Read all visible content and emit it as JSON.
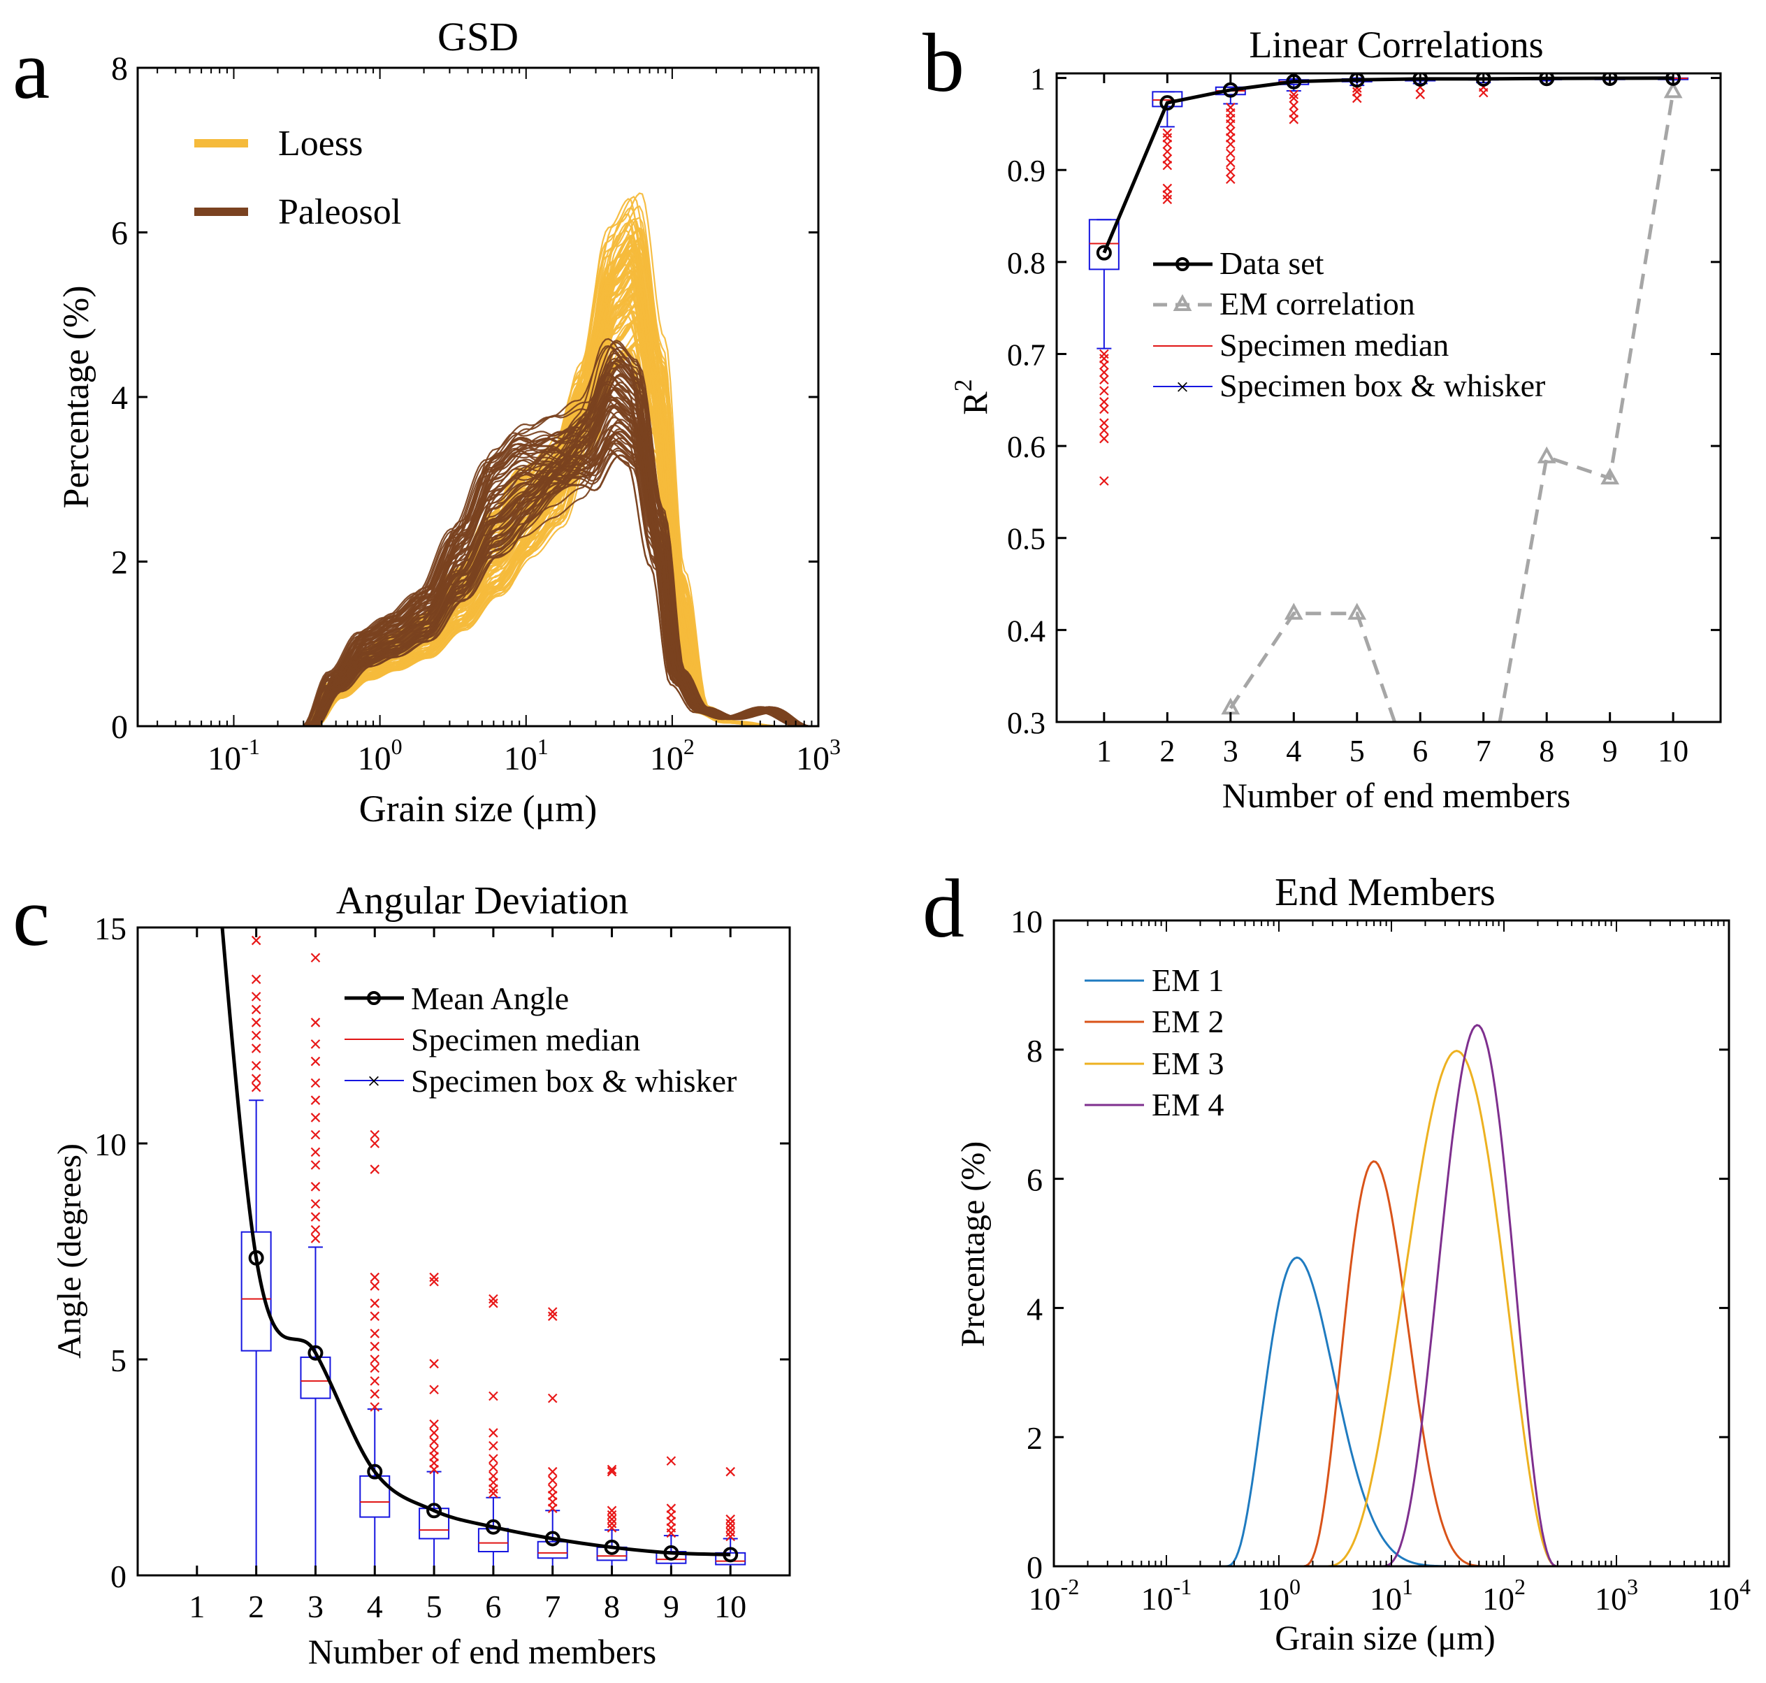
{
  "colors": {
    "loess": "#F5BA3B",
    "paleosol": "#7A4220",
    "box": "#1515E0",
    "median": "#E01515",
    "outlier": "#E81818",
    "dataset": "#000000",
    "em_corr": "#A6A6A6",
    "em1": "#1F7BC0",
    "em2": "#D95319",
    "em3": "#EDB120",
    "em4": "#7E2F8E"
  },
  "chart_data": [
    {
      "id": "a",
      "panel_letter": "a",
      "type": "line",
      "title": "GSD",
      "xlabel": "Grain size  (μm)",
      "ylabel": "Percentage (%)",
      "xscale": "log",
      "xlim": [
        0.022,
        1000
      ],
      "ylim": [
        0,
        8
      ],
      "yticks": [
        "0",
        "2",
        "4",
        "6",
        "8"
      ],
      "xtick_exponents": [
        "-1",
        "0",
        "1",
        "2",
        "3"
      ],
      "xtick_base": "10",
      "legend_position": "top-left",
      "legend": [
        "Loess",
        "Paleosol"
      ],
      "series": [
        {
          "name": "Loess",
          "count": 95,
          "description_values": "family of curves",
          "representative": {
            "x": [
              0.33,
              0.5,
              0.8,
              1.2,
              2,
              3.5,
              6,
              10,
              16,
              25,
              40,
              55,
              80,
              110,
              160,
              250,
              500,
              800
            ],
            "y": [
              0,
              0.45,
              0.75,
              0.9,
              1.1,
              1.55,
              2.1,
              2.6,
              2.95,
              3.9,
              5.2,
              5.5,
              4.0,
              1.6,
              0.2,
              0.05,
              0.0,
              0.0
            ]
          },
          "peak_range": [
            4.3,
            6.6
          ],
          "peak_x": 55
        },
        {
          "name": "Paleosol",
          "count": 70,
          "representative": {
            "x": [
              0.33,
              0.5,
              0.8,
              1.2,
              2,
              3.5,
              6,
              10,
              16,
              25,
              40,
              55,
              80,
              110,
              160,
              250,
              450,
              800
            ],
            "y": [
              0,
              0.55,
              0.95,
              1.1,
              1.35,
              2.0,
              2.7,
              3.0,
              3.2,
              3.4,
              4.0,
              3.8,
              2.3,
              0.6,
              0.2,
              0.1,
              0.2,
              0.0
            ]
          },
          "peak_range": [
            3.2,
            5.2
          ],
          "peak_x": 45
        }
      ]
    },
    {
      "id": "b",
      "panel_letter": "b",
      "type": "line",
      "title": "Linear Correlations",
      "xlabel": "Number of end members",
      "ylabel": "R",
      "ylabel_sup": "2",
      "xlim": [
        0.25,
        10.75
      ],
      "ylim": [
        0.3,
        1.005
      ],
      "xticks": [
        "1",
        "2",
        "3",
        "4",
        "5",
        "6",
        "7",
        "8",
        "9",
        "10"
      ],
      "yticks": [
        "0.3",
        "0.4",
        "0.5",
        "0.6",
        "0.7",
        "0.8",
        "0.9",
        "1"
      ],
      "legend_position": "middle-right",
      "legend": [
        "Data set",
        "EM correlation",
        "Specimen median",
        "Specimen box & whisker"
      ],
      "series": [
        {
          "name": "Data set",
          "x": [
            1,
            2,
            3,
            4,
            5,
            6,
            7,
            8,
            9,
            10
          ],
          "values": [
            0.81,
            0.973,
            0.987,
            0.996,
            0.998,
            0.999,
            0.999,
            0.9995,
            0.9997,
            0.9998
          ]
        },
        {
          "name": "EM correlation",
          "x": [
            1,
            2,
            3,
            4,
            5,
            6,
            7,
            8,
            9,
            10
          ],
          "values": [
            null,
            null,
            0.315,
            0.418,
            0.418,
            0.22,
            0.2,
            0.588,
            0.565,
            0.985
          ]
        }
      ],
      "boxes": [
        {
          "x": 1,
          "q1": 0.792,
          "median": 0.82,
          "q3": 0.846,
          "wlo": 0.706,
          "whi": 0.846,
          "outliers": [
            0.562,
            0.608,
            0.617,
            0.625,
            0.64,
            0.648,
            0.66,
            0.672,
            0.68,
            0.688,
            0.695,
            0.7
          ]
        },
        {
          "x": 2,
          "q1": 0.969,
          "median": 0.976,
          "q3": 0.985,
          "wlo": 0.947,
          "whi": 0.985,
          "outliers": [
            0.868,
            0.873,
            0.88,
            0.905,
            0.912,
            0.92,
            0.928,
            0.935,
            0.94
          ]
        },
        {
          "x": 3,
          "q1": 0.982,
          "median": 0.986,
          "q3": 0.99,
          "wlo": 0.972,
          "whi": 0.99,
          "outliers": [
            0.89,
            0.898,
            0.908,
            0.918,
            0.928,
            0.935,
            0.942,
            0.95,
            0.956,
            0.962,
            0.968
          ]
        },
        {
          "x": 4,
          "q1": 0.993,
          "median": 0.996,
          "q3": 0.998,
          "wlo": 0.986,
          "whi": 0.999,
          "outliers": [
            0.955,
            0.962,
            0.97,
            0.978,
            0.982
          ]
        },
        {
          "x": 5,
          "q1": 0.996,
          "median": 0.998,
          "q3": 0.999,
          "wlo": 0.992,
          "whi": 1.0,
          "outliers": [
            0.978,
            0.985,
            0.989
          ]
        },
        {
          "x": 6,
          "q1": 0.997,
          "median": 0.999,
          "q3": 0.9995,
          "wlo": 0.994,
          "whi": 1.0,
          "outliers": [
            0.982,
            0.99
          ]
        },
        {
          "x": 7,
          "q1": 0.998,
          "median": 0.999,
          "q3": 0.9997,
          "wlo": 0.995,
          "whi": 1.0,
          "outliers": [
            0.984,
            0.99
          ]
        },
        {
          "x": 8,
          "q1": 0.9985,
          "median": 0.9993,
          "q3": 0.9998,
          "wlo": 0.997,
          "whi": 1.0,
          "outliers": []
        },
        {
          "x": 9,
          "q1": 0.9988,
          "median": 0.9995,
          "q3": 0.9999,
          "wlo": 0.998,
          "whi": 1.0,
          "outliers": []
        },
        {
          "x": 10,
          "q1": 0.999,
          "median": 0.9996,
          "q3": 0.9999,
          "wlo": 0.998,
          "whi": 1.0,
          "outliers": []
        }
      ]
    },
    {
      "id": "c",
      "panel_letter": "c",
      "type": "line",
      "title": "Angular Deviation",
      "xlabel": "Number of end members",
      "ylabel": "Angle (degrees)",
      "xlim": [
        0,
        11
      ],
      "ylim": [
        0,
        15
      ],
      "xticks": [
        "1",
        "2",
        "3",
        "4",
        "5",
        "6",
        "7",
        "8",
        "9",
        "10"
      ],
      "yticks": [
        "0",
        "5",
        "10",
        "15"
      ],
      "legend_position": "top-right",
      "legend": [
        "Mean Angle",
        "Specimen median",
        "Specimen box & whisker"
      ],
      "series": [
        {
          "name": "Mean Angle",
          "x": [
            1,
            2,
            3,
            4,
            5,
            6,
            7,
            8,
            9,
            10
          ],
          "values": [
            22.0,
            7.35,
            5.15,
            2.4,
            1.5,
            1.12,
            0.85,
            0.65,
            0.52,
            0.48
          ]
        }
      ],
      "boxes": [
        {
          "x": 2,
          "q1": 5.2,
          "median": 6.4,
          "q3": 7.95,
          "wlo": 0.0,
          "whi": 11.0,
          "outliers": [
            11.3,
            11.5,
            11.8,
            12.2,
            12.5,
            12.8,
            13.1,
            13.4,
            13.8,
            14.7
          ]
        },
        {
          "x": 3,
          "q1": 4.1,
          "median": 4.5,
          "q3": 5.05,
          "wlo": 0.0,
          "whi": 7.6,
          "outliers": [
            7.8,
            8.0,
            8.3,
            8.6,
            9.0,
            9.5,
            9.8,
            10.2,
            10.6,
            11.0,
            11.4,
            11.9,
            12.3,
            12.8,
            14.3
          ]
        },
        {
          "x": 4,
          "q1": 1.35,
          "median": 1.7,
          "q3": 2.3,
          "wlo": 0.0,
          "whi": 3.85,
          "outliers": [
            3.9,
            4.2,
            4.5,
            4.8,
            5.0,
            5.3,
            5.6,
            6.0,
            6.3,
            6.7,
            6.9,
            9.4,
            10.0,
            10.2
          ]
        },
        {
          "x": 5,
          "q1": 0.85,
          "median": 1.05,
          "q3": 1.55,
          "wlo": 0.0,
          "whi": 2.4,
          "outliers": [
            2.45,
            2.6,
            2.75,
            2.9,
            3.1,
            3.3,
            3.5,
            4.3,
            4.9,
            6.8,
            6.9
          ]
        },
        {
          "x": 6,
          "q1": 0.55,
          "median": 0.75,
          "q3": 1.08,
          "wlo": 0.0,
          "whi": 1.8,
          "outliers": [
            1.9,
            2.0,
            2.15,
            2.3,
            2.5,
            2.7,
            3.0,
            3.3,
            4.15,
            6.3,
            6.4
          ]
        },
        {
          "x": 7,
          "q1": 0.4,
          "median": 0.52,
          "q3": 0.78,
          "wlo": 0.0,
          "whi": 1.5,
          "outliers": [
            1.55,
            1.7,
            1.85,
            2.0,
            2.2,
            2.4,
            4.1,
            6.0,
            6.1
          ]
        },
        {
          "x": 8,
          "q1": 0.35,
          "median": 0.45,
          "q3": 0.65,
          "wlo": 0.0,
          "whi": 1.05,
          "outliers": [
            1.1,
            1.2,
            1.3,
            1.4,
            1.5,
            2.4,
            2.45
          ]
        },
        {
          "x": 9,
          "q1": 0.28,
          "median": 0.37,
          "q3": 0.55,
          "wlo": 0.0,
          "whi": 0.92,
          "outliers": [
            0.98,
            1.1,
            1.25,
            1.4,
            1.55,
            2.65
          ]
        },
        {
          "x": 10,
          "q1": 0.25,
          "median": 0.33,
          "q3": 0.52,
          "wlo": 0.0,
          "whi": 0.85,
          "outliers": [
            0.9,
            1.0,
            1.1,
            1.2,
            1.3,
            2.4
          ]
        }
      ]
    },
    {
      "id": "d",
      "panel_letter": "d",
      "type": "line",
      "title": "End Members",
      "xlabel": "Grain size (μm)",
      "ylabel": "Precentage (%)",
      "xscale": "log",
      "xlim": [
        0.01,
        10000
      ],
      "ylim": [
        0,
        10
      ],
      "yticks": [
        "0",
        "2",
        "4",
        "6",
        "8",
        "10"
      ],
      "xtick_exponents": [
        "-2",
        "-1",
        "0",
        "1",
        "2",
        "3",
        "4"
      ],
      "xtick_base": "10",
      "legend_position": "top-left",
      "legend": [
        "EM 1",
        "EM 2",
        "EM 3",
        "EM 4"
      ],
      "series": [
        {
          "name": "EM 1",
          "peak_x": 1.45,
          "peak_y": 4.78,
          "x_min": 0.33,
          "x_max": 100
        },
        {
          "name": "EM 2",
          "peak_x": 7.0,
          "peak_y": 6.27,
          "x_min": 1.6,
          "x_max": 90
        },
        {
          "name": "EM 3",
          "peak_x": 38,
          "peak_y": 7.98,
          "x_min": 2.5,
          "x_max": 300
        },
        {
          "name": "EM 4",
          "peak_x": 58,
          "peak_y": 8.38,
          "x_min": 8,
          "x_max": 300
        }
      ]
    }
  ]
}
